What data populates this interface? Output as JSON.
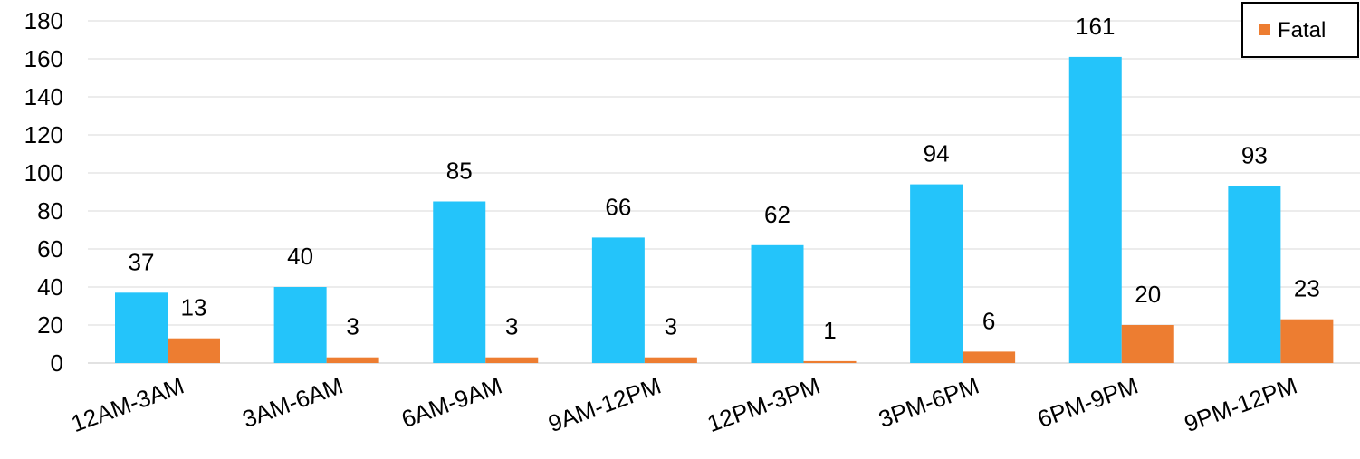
{
  "chart_data": {
    "type": "bar",
    "title": "",
    "xlabel": "",
    "ylabel": "",
    "ylim": [
      0,
      180
    ],
    "yticks": [
      0,
      20,
      40,
      60,
      80,
      100,
      120,
      140,
      160,
      180
    ],
    "ytick_labels": [
      "0",
      "20",
      "40",
      "60",
      "80",
      "100",
      "120",
      "140",
      "160",
      "180"
    ],
    "grid": true,
    "legend_position": "top-right",
    "categories": [
      "12AM-3AM",
      "3AM-6AM",
      "6AM-9AM",
      "9AM-12PM",
      "12PM-3PM",
      "3PM-6PM",
      "6PM-9PM",
      "9PM-12PM"
    ],
    "series": [
      {
        "values": [
          37,
          40,
          85,
          66,
          62,
          94,
          161,
          93
        ],
        "color": "#24c4fa"
      },
      {
        "name": "Fatal",
        "values": [
          13,
          3,
          3,
          3,
          1,
          6,
          20,
          23
        ],
        "color": "#ed7d31"
      }
    ],
    "data_labels": true
  }
}
